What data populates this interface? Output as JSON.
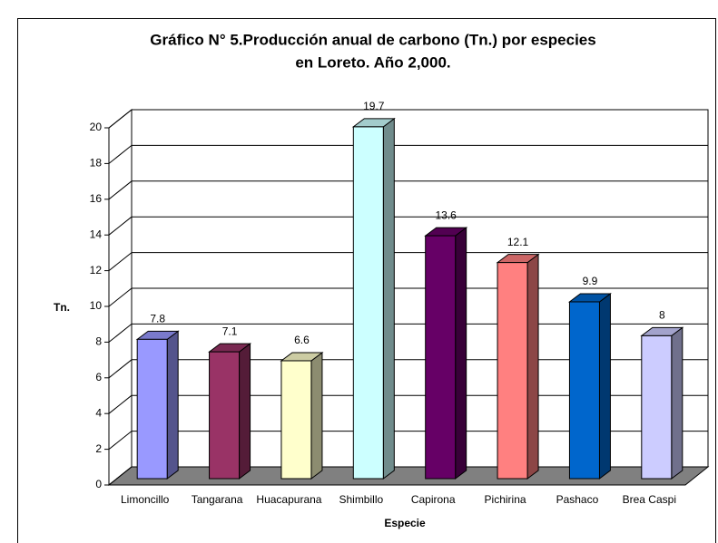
{
  "chart_data": {
    "type": "bar3d",
    "title": [
      "Gráfico N° 5.Producción anual de carbono (Tn.) por especies",
      "en Loreto. Año 2,000."
    ],
    "x_label": "Especie",
    "y_label": "Tn.",
    "categories": [
      "Limoncillo",
      "Tangarana",
      "Huacapurana",
      "Shimbillo",
      "Capirona",
      "Pichirina",
      "Pashaco",
      "Brea Caspi"
    ],
    "values": [
      7.8,
      7.1,
      6.6,
      19.7,
      13.6,
      12.1,
      9.9,
      8
    ],
    "colors": [
      "#9999ff",
      "#993366",
      "#ffffcc",
      "#ccffff",
      "#660066",
      "#ff8080",
      "#0066cc",
      "#ccccff"
    ],
    "ylim": [
      0,
      20
    ],
    "yticks": [
      0,
      2,
      4,
      6,
      8,
      10,
      12,
      14,
      16,
      18,
      20
    ],
    "grid": true
  }
}
